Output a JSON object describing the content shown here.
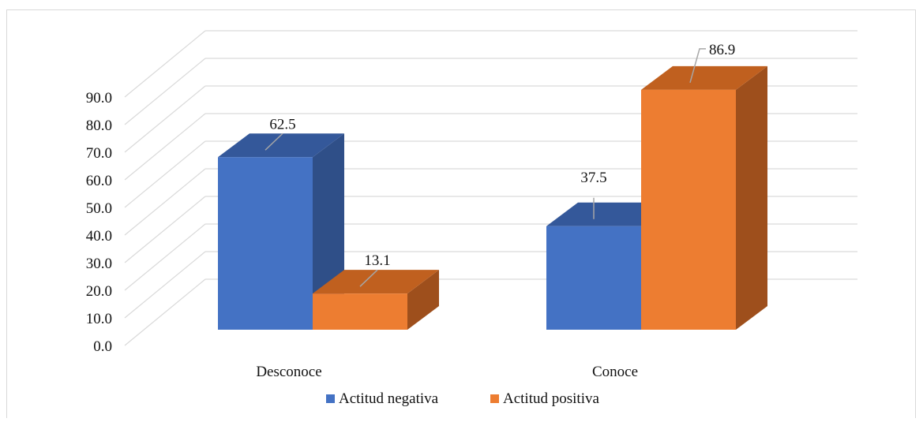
{
  "chart_data": {
    "type": "bar",
    "style": "3d-clustered-column",
    "categories": [
      "Desconoce",
      "Conoce"
    ],
    "series": [
      {
        "name": "Actitud negativa",
        "values": [
          62.5,
          37.5
        ],
        "color": "#4472c4",
        "side_color": "#2f4f88",
        "top_color": "#34589a"
      },
      {
        "name": "Actitud positiva",
        "values": [
          13.1,
          86.9
        ],
        "color": "#ed7d31",
        "side_color": "#9e4f1c",
        "top_color": "#c0601f"
      }
    ],
    "value_labels": [
      "62.5",
      "37.5",
      "13.1",
      "86.9"
    ],
    "y_ticks": [
      "0.0",
      "10.0",
      "20.0",
      "30.0",
      "40.0",
      "50.0",
      "60.0",
      "70.0",
      "80.0",
      "90.0"
    ],
    "ylim": [
      0,
      90
    ],
    "grid": true,
    "legend": "bottom",
    "title": "",
    "xlabel": "",
    "ylabel": ""
  }
}
